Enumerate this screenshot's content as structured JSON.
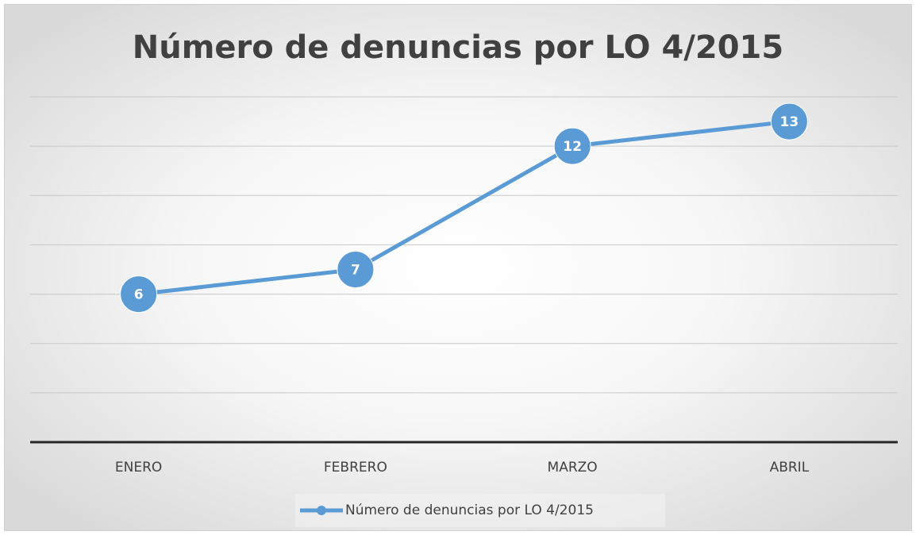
{
  "chart_data": {
    "type": "line",
    "title": "Número de denuncias por LO 4/2015",
    "categories": [
      "ENERO",
      "FEBRERO",
      "MARZO",
      "ABRIL"
    ],
    "series": [
      {
        "name": "Número de denuncias por LO 4/2015",
        "color": "#5b9bd5",
        "values": [
          6,
          7,
          12,
          13
        ]
      }
    ],
    "ylim": [
      0,
      14
    ],
    "yticks": [
      0,
      2,
      4,
      6,
      8,
      10,
      12,
      14
    ],
    "grid": true,
    "legend": "bottom"
  }
}
